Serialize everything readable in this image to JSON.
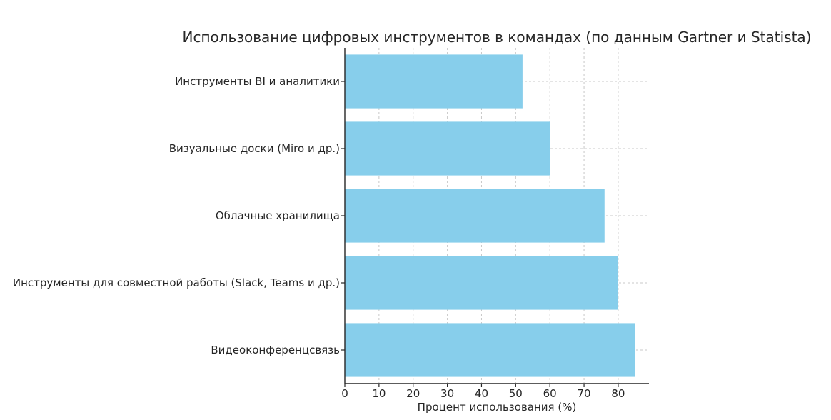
{
  "chart_data": {
    "type": "bar",
    "orientation": "horizontal",
    "title": "Использование цифровых инструментов в командах (по данным Gartner и Statista)",
    "xlabel": "Процент использования (%)",
    "ylabel": "",
    "categories": [
      "Видеоконференцсвязь",
      "Инструменты для совместной работы (Slack, Teams и др.)",
      "Облачные хранилища",
      "Визуальные доски (Miro и др.)",
      "Инструменты BI и аналитики"
    ],
    "values": [
      85,
      80,
      76,
      60,
      52
    ],
    "xlim": [
      0,
      89
    ],
    "xticks": [
      0,
      10,
      20,
      30,
      40,
      50,
      60,
      70,
      80
    ],
    "grid": true,
    "bar_color": "#87ceeb",
    "legend": "none"
  }
}
